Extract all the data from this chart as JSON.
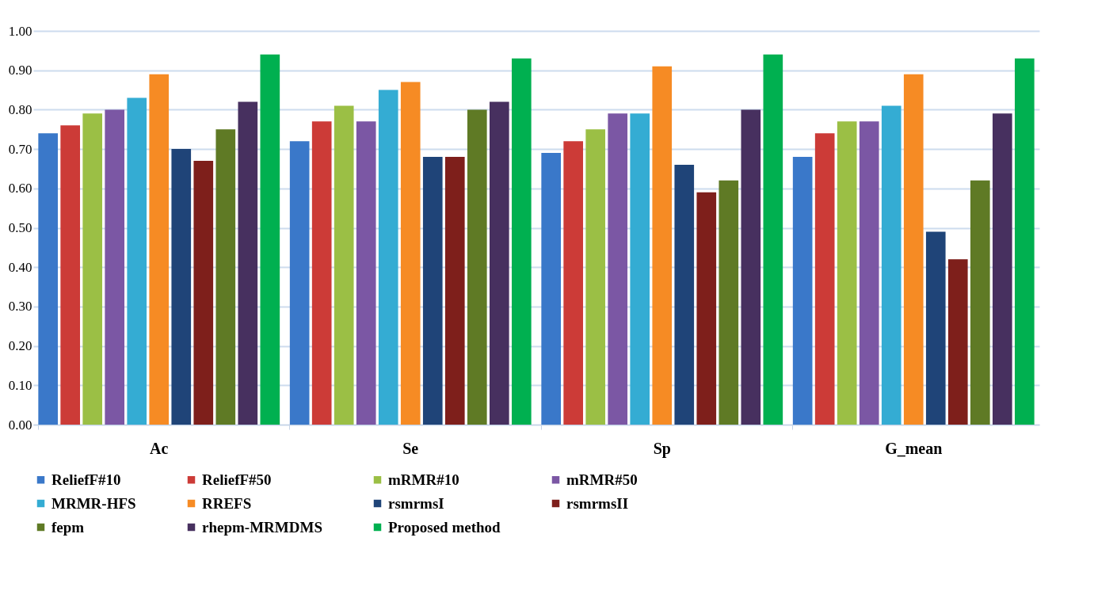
{
  "chart_data": {
    "type": "bar",
    "categories": [
      "Ac",
      "Se",
      "Sp",
      "G_mean"
    ],
    "series": [
      {
        "name": "ReliefF#10",
        "color": "#3a78c9",
        "values": [
          0.74,
          0.72,
          0.69,
          0.68
        ]
      },
      {
        "name": "ReliefF#50",
        "color": "#cc3b37",
        "values": [
          0.76,
          0.77,
          0.72,
          0.74
        ]
      },
      {
        "name": "mRMR#10",
        "color": "#9bbf45",
        "values": [
          0.79,
          0.81,
          0.75,
          0.77
        ]
      },
      {
        "name": "mRMR#50",
        "color": "#7b57a4",
        "values": [
          0.8,
          0.77,
          0.79,
          0.77
        ]
      },
      {
        "name": "MRMR-HFS",
        "color": "#34acd3",
        "values": [
          0.83,
          0.85,
          0.79,
          0.81
        ]
      },
      {
        "name": "RREFS",
        "color": "#f68b24",
        "values": [
          0.89,
          0.87,
          0.91,
          0.89
        ]
      },
      {
        "name": "rsmrmsI",
        "color": "#1f4478",
        "values": [
          0.7,
          0.68,
          0.66,
          0.49
        ]
      },
      {
        "name": "rsmrmsII",
        "color": "#7e1f1b",
        "values": [
          0.67,
          0.68,
          0.59,
          0.42
        ]
      },
      {
        "name": "fepm",
        "color": "#5f7a25",
        "values": [
          0.75,
          0.8,
          0.62,
          0.62
        ]
      },
      {
        "name": "rhepm-MRMDMS",
        "color": "#47305f",
        "values": [
          0.82,
          0.82,
          0.8,
          0.79
        ]
      },
      {
        "name": "Proposed method",
        "color": "#00b050",
        "values": [
          0.94,
          0.93,
          0.94,
          0.93
        ]
      }
    ],
    "ylim": [
      0,
      1
    ],
    "yticks": [
      {
        "value": 0,
        "label": "0.00"
      },
      {
        "value": 0.1,
        "label": "0.10"
      },
      {
        "value": 0.2,
        "label": "0.20"
      },
      {
        "value": 0.3,
        "label": "0.30"
      },
      {
        "value": 0.4,
        "label": "0.40"
      },
      {
        "value": 0.5,
        "label": "0.50"
      },
      {
        "value": 0.6,
        "label": "0.60"
      },
      {
        "value": 0.7,
        "label": "0.70"
      },
      {
        "value": 0.8,
        "label": "0.80"
      },
      {
        "value": 0.9,
        "label": "0.90"
      },
      {
        "value": 1,
        "label": "1.00"
      }
    ],
    "grid": "y",
    "legend": "bottom"
  }
}
